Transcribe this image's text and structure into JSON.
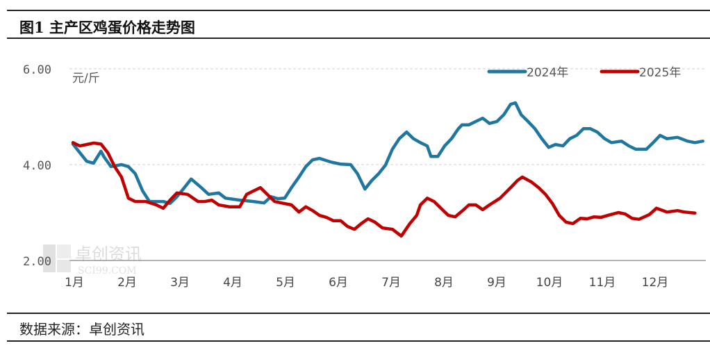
{
  "header": {
    "title": "图1 主产区鸡蛋价格走势图"
  },
  "footer": {
    "source": "数据来源：卓创资讯"
  },
  "watermark": {
    "text": "卓创资讯",
    "sub": "SCI99.COM"
  },
  "chart_data": {
    "type": "line",
    "title": "图1 主产区鸡蛋价格走势图",
    "ylabel": "元/斤",
    "ylim": [
      2,
      6
    ],
    "yticks": [
      "6.00",
      "4.00",
      "2.00"
    ],
    "ytick_values": [
      6,
      4,
      2
    ],
    "xticks": [
      "1月",
      "2月",
      "3月",
      "4月",
      "5月",
      "6月",
      "7月",
      "8月",
      "9月",
      "10月",
      "11月",
      "12月"
    ],
    "xlim": [
      1,
      13
    ],
    "grid": "horizontal dashed",
    "legend": "top-right",
    "series": [
      {
        "name": "2024年",
        "color": "#1F77A0",
        "points": [
          [
            1.0,
            4.43
          ],
          [
            1.13,
            4.25
          ],
          [
            1.26,
            4.07
          ],
          [
            1.39,
            4.03
          ],
          [
            1.53,
            4.28
          ],
          [
            1.59,
            4.16
          ],
          [
            1.72,
            3.96
          ],
          [
            1.92,
            4.0
          ],
          [
            2.05,
            3.96
          ],
          [
            2.18,
            3.81
          ],
          [
            2.32,
            3.45
          ],
          [
            2.45,
            3.23
          ],
          [
            2.58,
            3.23
          ],
          [
            2.71,
            3.23
          ],
          [
            2.84,
            3.19
          ],
          [
            2.97,
            3.33
          ],
          [
            3.11,
            3.52
          ],
          [
            3.24,
            3.7
          ],
          [
            3.43,
            3.52
          ],
          [
            3.57,
            3.38
          ],
          [
            3.76,
            3.41
          ],
          [
            3.89,
            3.3
          ],
          [
            4.16,
            3.26
          ],
          [
            4.42,
            3.23
          ],
          [
            4.62,
            3.2
          ],
          [
            4.75,
            3.33
          ],
          [
            4.88,
            3.29
          ],
          [
            5.01,
            3.3
          ],
          [
            5.14,
            3.52
          ],
          [
            5.28,
            3.74
          ],
          [
            5.41,
            3.96
          ],
          [
            5.54,
            4.1
          ],
          [
            5.67,
            4.13
          ],
          [
            5.87,
            4.06
          ],
          [
            6.07,
            4.01
          ],
          [
            6.26,
            4.0
          ],
          [
            6.39,
            3.81
          ],
          [
            6.53,
            3.49
          ],
          [
            6.66,
            3.67
          ],
          [
            6.79,
            3.81
          ],
          [
            6.92,
            3.99
          ],
          [
            7.05,
            4.32
          ],
          [
            7.18,
            4.54
          ],
          [
            7.32,
            4.68
          ],
          [
            7.45,
            4.54
          ],
          [
            7.58,
            4.46
          ],
          [
            7.71,
            4.39
          ],
          [
            7.78,
            4.17
          ],
          [
            7.91,
            4.17
          ],
          [
            8.04,
            4.39
          ],
          [
            8.17,
            4.54
          ],
          [
            8.3,
            4.75
          ],
          [
            8.37,
            4.83
          ],
          [
            8.5,
            4.83
          ],
          [
            8.63,
            4.9
          ],
          [
            8.76,
            4.97
          ],
          [
            8.89,
            4.86
          ],
          [
            9.03,
            4.9
          ],
          [
            9.16,
            5.04
          ],
          [
            9.29,
            5.26
          ],
          [
            9.38,
            5.29
          ],
          [
            9.49,
            5.04
          ],
          [
            9.62,
            4.9
          ],
          [
            9.75,
            4.75
          ],
          [
            9.88,
            4.54
          ],
          [
            10.01,
            4.36
          ],
          [
            10.14,
            4.42
          ],
          [
            10.28,
            4.39
          ],
          [
            10.41,
            4.54
          ],
          [
            10.54,
            4.61
          ],
          [
            10.67,
            4.75
          ],
          [
            10.8,
            4.75
          ],
          [
            10.93,
            4.68
          ],
          [
            11.07,
            4.54
          ],
          [
            11.2,
            4.46
          ],
          [
            11.39,
            4.49
          ],
          [
            11.53,
            4.39
          ],
          [
            11.66,
            4.32
          ],
          [
            11.86,
            4.32
          ],
          [
            11.99,
            4.46
          ],
          [
            12.12,
            4.61
          ],
          [
            12.25,
            4.54
          ],
          [
            12.45,
            4.57
          ],
          [
            12.64,
            4.49
          ],
          [
            12.78,
            4.46
          ],
          [
            12.93,
            4.49
          ]
        ]
      },
      {
        "name": "2025年",
        "color": "#C00000",
        "points": [
          [
            1.0,
            4.46
          ],
          [
            1.13,
            4.39
          ],
          [
            1.26,
            4.42
          ],
          [
            1.39,
            4.45
          ],
          [
            1.53,
            4.43
          ],
          [
            1.66,
            4.25
          ],
          [
            1.79,
            3.96
          ],
          [
            1.92,
            3.74
          ],
          [
            2.05,
            3.3
          ],
          [
            2.18,
            3.23
          ],
          [
            2.38,
            3.23
          ],
          [
            2.58,
            3.16
          ],
          [
            2.71,
            3.09
          ],
          [
            2.84,
            3.26
          ],
          [
            2.97,
            3.41
          ],
          [
            3.17,
            3.38
          ],
          [
            3.37,
            3.23
          ],
          [
            3.5,
            3.23
          ],
          [
            3.63,
            3.26
          ],
          [
            3.76,
            3.16
          ],
          [
            3.96,
            3.12
          ],
          [
            4.16,
            3.12
          ],
          [
            4.29,
            3.38
          ],
          [
            4.42,
            3.45
          ],
          [
            4.55,
            3.52
          ],
          [
            4.68,
            3.38
          ],
          [
            4.82,
            3.23
          ],
          [
            4.95,
            3.2
          ],
          [
            5.14,
            3.16
          ],
          [
            5.28,
            3.01
          ],
          [
            5.41,
            3.12
          ],
          [
            5.54,
            3.04
          ],
          [
            5.67,
            2.94
          ],
          [
            5.8,
            2.9
          ],
          [
            5.93,
            2.83
          ],
          [
            6.07,
            2.83
          ],
          [
            6.2,
            2.71
          ],
          [
            6.33,
            2.65
          ],
          [
            6.46,
            2.77
          ],
          [
            6.59,
            2.87
          ],
          [
            6.72,
            2.8
          ],
          [
            6.86,
            2.68
          ],
          [
            7.05,
            2.65
          ],
          [
            7.22,
            2.51
          ],
          [
            7.38,
            2.77
          ],
          [
            7.51,
            2.94
          ],
          [
            7.58,
            3.16
          ],
          [
            7.71,
            3.3
          ],
          [
            7.84,
            3.23
          ],
          [
            7.97,
            3.09
          ],
          [
            8.11,
            2.94
          ],
          [
            8.24,
            2.91
          ],
          [
            8.37,
            3.03
          ],
          [
            8.5,
            3.16
          ],
          [
            8.63,
            3.16
          ],
          [
            8.76,
            3.06
          ],
          [
            8.89,
            3.16
          ],
          [
            9.09,
            3.3
          ],
          [
            9.29,
            3.52
          ],
          [
            9.42,
            3.67
          ],
          [
            9.51,
            3.74
          ],
          [
            9.68,
            3.64
          ],
          [
            9.82,
            3.52
          ],
          [
            9.95,
            3.38
          ],
          [
            10.08,
            3.19
          ],
          [
            10.21,
            2.94
          ],
          [
            10.34,
            2.8
          ],
          [
            10.47,
            2.77
          ],
          [
            10.61,
            2.88
          ],
          [
            10.74,
            2.87
          ],
          [
            10.87,
            2.91
          ],
          [
            11.0,
            2.9
          ],
          [
            11.13,
            2.94
          ],
          [
            11.33,
            3.0
          ],
          [
            11.46,
            2.97
          ],
          [
            11.59,
            2.88
          ],
          [
            11.72,
            2.86
          ],
          [
            11.92,
            2.96
          ],
          [
            12.05,
            3.09
          ],
          [
            12.25,
            3.01
          ],
          [
            12.45,
            3.04
          ],
          [
            12.58,
            3.01
          ],
          [
            12.78,
            2.99
          ]
        ]
      }
    ]
  }
}
